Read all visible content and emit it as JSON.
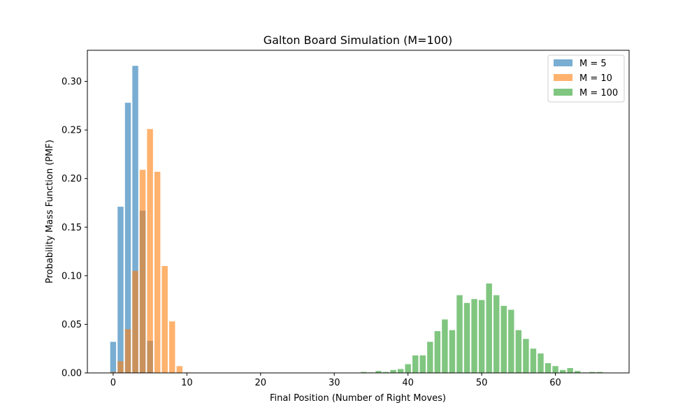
{
  "chart_data": {
    "type": "bar",
    "title": "Galton Board Simulation (M=100)",
    "xlabel": "Final Position (Number of Right Moves)",
    "ylabel": "Probability Mass Function (PMF)",
    "xlim": [
      -3.5,
      70
    ],
    "ylim": [
      0,
      0.332
    ],
    "xticks": [
      0,
      10,
      20,
      30,
      40,
      50,
      60
    ],
    "yticks": [
      "0.00",
      "0.05",
      "0.10",
      "0.15",
      "0.20",
      "0.25",
      "0.30"
    ],
    "ytick_values": [
      0,
      0.05,
      0.1,
      0.15,
      0.2,
      0.25,
      0.3
    ],
    "grid": false,
    "legend_position": "top-right",
    "series": [
      {
        "name": "M = 5",
        "color": "#1f77b4",
        "alpha": 0.6,
        "x": [
          0,
          1,
          2,
          3,
          4,
          5
        ],
        "values": [
          0.032,
          0.171,
          0.278,
          0.316,
          0.167,
          0.033
        ]
      },
      {
        "name": "M = 10",
        "color": "#ff7f0e",
        "alpha": 0.6,
        "x": [
          0,
          1,
          2,
          3,
          4,
          5,
          6,
          7,
          8,
          9,
          10
        ],
        "values": [
          0.001,
          0.012,
          0.045,
          0.105,
          0.209,
          0.251,
          0.207,
          0.11,
          0.053,
          0.007,
          0.0005
        ]
      },
      {
        "name": "M = 100",
        "color": "#2ca02c",
        "alpha": 0.6,
        "x": [
          34,
          35,
          36,
          37,
          38,
          39,
          40,
          41,
          42,
          43,
          44,
          45,
          46,
          47,
          48,
          49,
          50,
          51,
          52,
          53,
          54,
          55,
          56,
          57,
          58,
          59,
          60,
          61,
          62,
          63,
          64,
          65,
          66
        ],
        "values": [
          0.001,
          0.0005,
          0.002,
          0.001,
          0.003,
          0.004,
          0.009,
          0.018,
          0.018,
          0.032,
          0.043,
          0.055,
          0.044,
          0.08,
          0.072,
          0.076,
          0.075,
          0.092,
          0.08,
          0.069,
          0.065,
          0.044,
          0.035,
          0.025,
          0.02,
          0.01,
          0.007,
          0.003,
          0.005,
          0.002,
          0.0005,
          0.001,
          0.001
        ]
      }
    ]
  }
}
